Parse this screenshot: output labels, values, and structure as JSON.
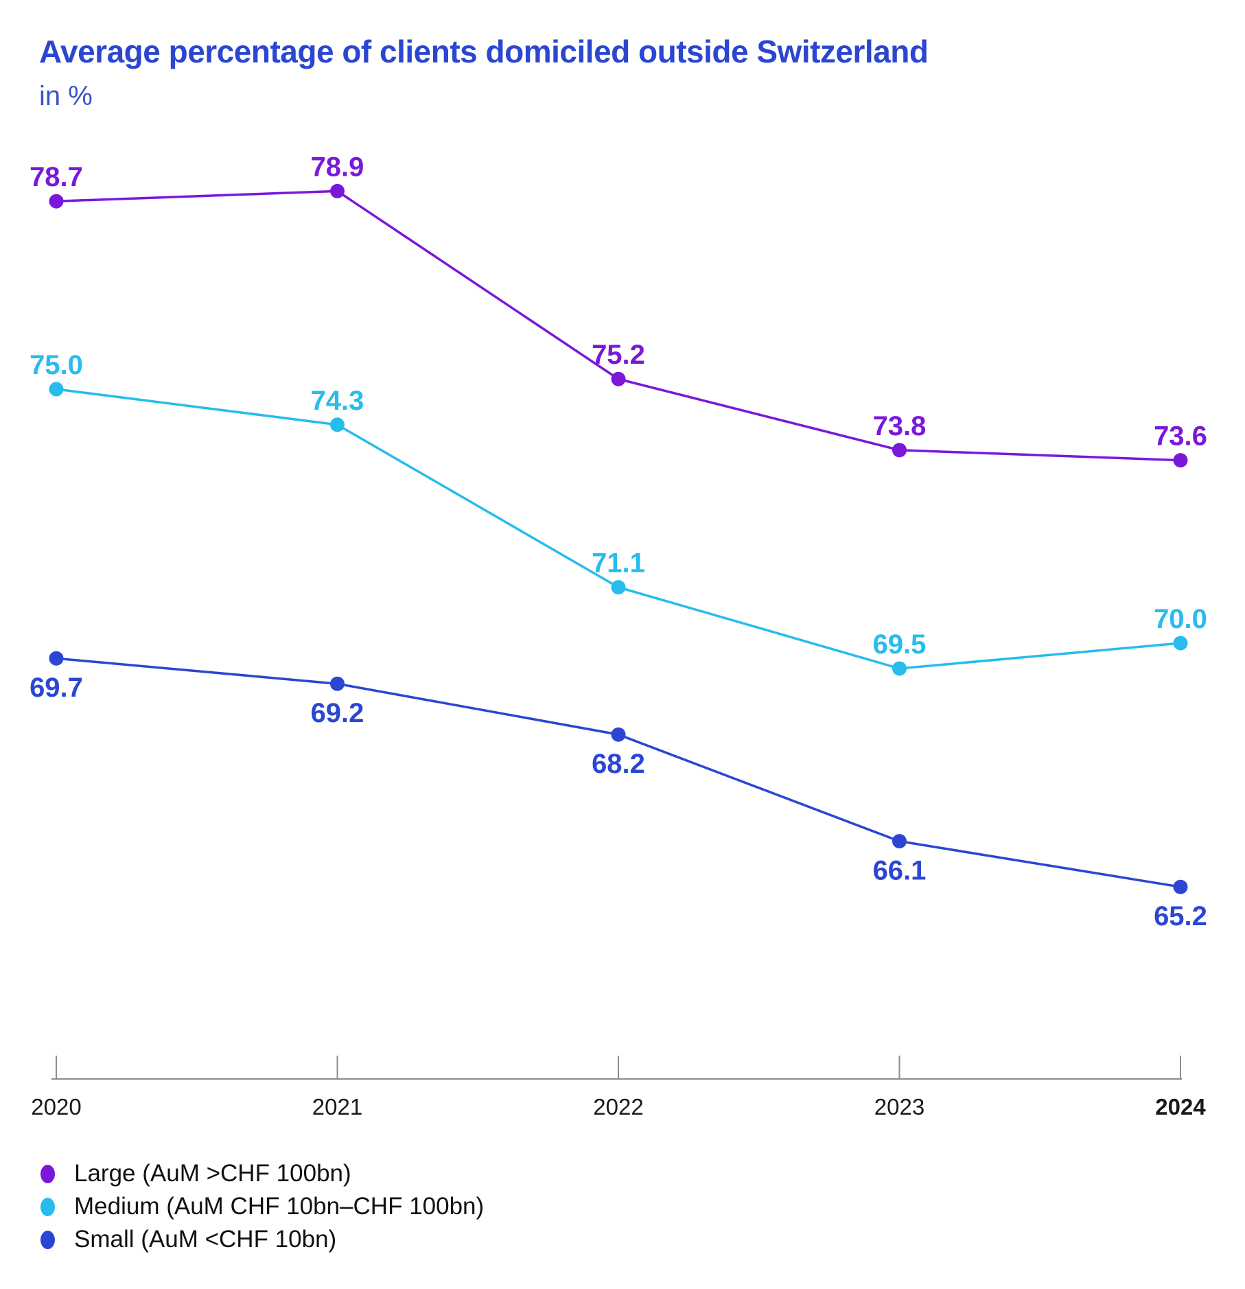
{
  "chart_data": {
    "type": "line",
    "title": "Average percentage of clients domiciled outside Switzerland",
    "subtitle": "in %",
    "categories": [
      "2020",
      "2021",
      "2022",
      "2023",
      "2024"
    ],
    "emphasized_category": "2024",
    "series": [
      {
        "name": "Large (AuM >CHF 100bn)",
        "color": "#7a18da",
        "values": [
          78.7,
          78.9,
          75.2,
          73.8,
          73.6
        ],
        "label_position": "above"
      },
      {
        "name": "Medium (AuM CHF 10bn–CHF 100bn)",
        "color": "#27bceb",
        "values": [
          75.0,
          74.3,
          71.1,
          69.5,
          70.0
        ],
        "label_position": "above"
      },
      {
        "name": "Small (AuM <CHF 10bn)",
        "color": "#2b46d3",
        "values": [
          69.7,
          69.2,
          68.2,
          66.1,
          65.2
        ],
        "label_position": "below"
      }
    ],
    "ylim": [
      62,
      80
    ],
    "grid": false,
    "data_labels": true,
    "legend_position": "bottom-left",
    "axis_color": "#8c8c8c",
    "title_color": "#2b46d1",
    "subtitle_color": "#3a54c8"
  }
}
